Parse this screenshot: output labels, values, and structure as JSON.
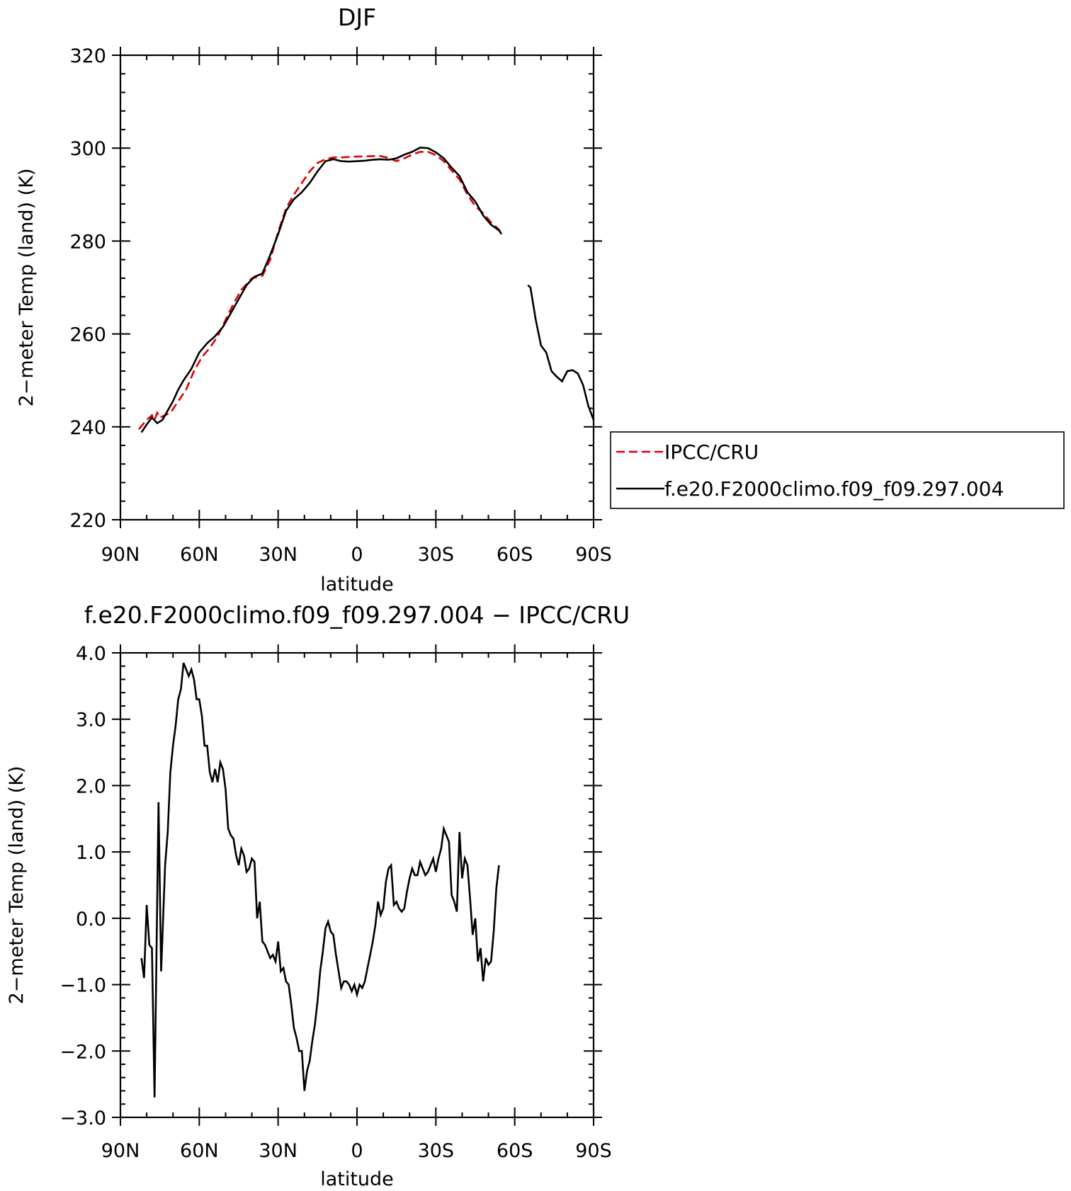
{
  "chart_data": [
    {
      "type": "line",
      "title": "DJF",
      "xlabel": "latitude",
      "ylabel": "2−meter Temp (land) (K)",
      "xlim": [
        90,
        -90
      ],
      "ylim": [
        220,
        320
      ],
      "x_ticks": [
        90,
        60,
        30,
        0,
        -30,
        -60,
        -90
      ],
      "x_tick_labels": [
        "90N",
        "60N",
        "30N",
        "0",
        "30S",
        "60S",
        "90S"
      ],
      "y_ticks": [
        220,
        240,
        260,
        280,
        300,
        320
      ],
      "y_tick_labels": [
        "220",
        "240",
        "260",
        "280",
        "300",
        "320"
      ],
      "legend_position": "right-outside",
      "series": [
        {
          "name": "IPCC/CRU",
          "color": "#e00000",
          "style": "dashed",
          "points": [
            [
              83,
              239.5
            ],
            [
              80,
              241.5
            ],
            [
              78,
              242.5
            ],
            [
              77,
              241.5
            ],
            [
              76,
              243
            ],
            [
              75,
              242
            ],
            [
              73,
              242.5
            ],
            [
              71,
              243
            ],
            [
              68,
              245.5
            ],
            [
              65,
              248
            ],
            [
              62,
              252
            ],
            [
              59,
              255
            ],
            [
              56,
              257
            ],
            [
              53,
              259.5
            ],
            [
              50,
              263
            ],
            [
              47,
              266.5
            ],
            [
              44,
              269.5
            ],
            [
              40,
              272
            ],
            [
              36,
              272.5
            ],
            [
              33,
              276
            ],
            [
              30,
              282
            ],
            [
              27,
              287
            ],
            [
              24,
              290
            ],
            [
              21,
              292.5
            ],
            [
              18,
              295
            ],
            [
              15,
              296.8
            ],
            [
              12,
              297.6
            ],
            [
              9,
              298
            ],
            [
              6,
              298
            ],
            [
              3,
              298.1
            ],
            [
              0,
              298.2
            ],
            [
              -3,
              298.2
            ],
            [
              -6,
              298.3
            ],
            [
              -9,
              298.3
            ],
            [
              -12,
              297.9
            ],
            [
              -15,
              297.2
            ],
            [
              -18,
              297.8
            ],
            [
              -21,
              298.6
            ],
            [
              -24,
              299.2
            ],
            [
              -27,
              299.2
            ],
            [
              -30,
              298.5
            ],
            [
              -33,
              297.2
            ],
            [
              -36,
              295.2
            ],
            [
              -39,
              293.3
            ],
            [
              -42,
              290
            ],
            [
              -45,
              287.5
            ],
            [
              -48,
              286
            ],
            [
              -51,
              284
            ],
            [
              -54,
              282.5
            ],
            [
              -55,
              281.3
            ]
          ]
        },
        {
          "name": "f.e20.F2000climo.f09_f09.297.004",
          "color": "#000000",
          "style": "solid",
          "segments": [
            [
              [
                82,
                238.8
              ],
              [
                80,
                240.5
              ],
              [
                78,
                242
              ],
              [
                76,
                240.8
              ],
              [
                74,
                241.5
              ],
              [
                72,
                243.5
              ],
              [
                70,
                245.5
              ],
              [
                68,
                248
              ],
              [
                66,
                250
              ],
              [
                63,
                252.5
              ],
              [
                60,
                256
              ],
              [
                57,
                258
              ],
              [
                54,
                259.5
              ],
              [
                51,
                261.5
              ],
              [
                48,
                264.5
              ],
              [
                45,
                267.5
              ],
              [
                42,
                270.5
              ],
              [
                39,
                272.3
              ],
              [
                36,
                273
              ],
              [
                33,
                277
              ],
              [
                30,
                281.5
              ],
              [
                27,
                286.5
              ],
              [
                24,
                289
              ],
              [
                21,
                290.5
              ],
              [
                18,
                292.5
              ],
              [
                15,
                295
              ],
              [
                12,
                297.2
              ],
              [
                9,
                297.6
              ],
              [
                6,
                297.2
              ],
              [
                3,
                297.1
              ],
              [
                0,
                297.2
              ],
              [
                -3,
                297.3
              ],
              [
                -6,
                297.5
              ],
              [
                -9,
                297.6
              ],
              [
                -12,
                297.5
              ],
              [
                -15,
                297.8
              ],
              [
                -18,
                298.6
              ],
              [
                -21,
                299.2
              ],
              [
                -24,
                300.1
              ],
              [
                -27,
                300
              ],
              [
                -30,
                299.1
              ],
              [
                -33,
                297.8
              ],
              [
                -36,
                295.8
              ],
              [
                -39,
                294
              ],
              [
                -42,
                290.5
              ],
              [
                -45,
                288.5
              ],
              [
                -48,
                285.5
              ],
              [
                -51,
                283.5
              ],
              [
                -54,
                282.3
              ],
              [
                -55,
                281.5
              ]
            ],
            [
              [
                -65,
                270.5
              ],
              [
                -66,
                270
              ],
              [
                -68,
                263
              ],
              [
                -70,
                257.5
              ],
              [
                -72,
                256
              ],
              [
                -74,
                252
              ],
              [
                -76,
                250.8
              ],
              [
                -78,
                249.8
              ],
              [
                -80,
                252
              ],
              [
                -82,
                252.2
              ],
              [
                -84,
                251.5
              ],
              [
                -86,
                249
              ],
              [
                -88,
                244.5
              ],
              [
                -90,
                241.5
              ]
            ]
          ]
        }
      ]
    },
    {
      "type": "line",
      "title": "f.e20.F2000climo.f09_f09.297.004 − IPCC/CRU",
      "xlabel": "latitude",
      "ylabel": "2−meter Temp (land) (K)",
      "xlim": [
        90,
        -90
      ],
      "ylim": [
        -3,
        4
      ],
      "x_ticks": [
        90,
        60,
        30,
        0,
        -30,
        -60,
        -90
      ],
      "x_tick_labels": [
        "90N",
        "60N",
        "30N",
        "0",
        "30S",
        "60S",
        "90S"
      ],
      "y_ticks": [
        -3,
        -2,
        -1,
        0,
        1,
        2,
        3,
        4
      ],
      "y_tick_labels": [
        "−3.0",
        "−2.0",
        "−1.0",
        "0.0",
        "1.0",
        "2.0",
        "3.0",
        "4.0"
      ],
      "series": [
        {
          "name": "",
          "color": "#000000",
          "style": "solid",
          "points": [
            [
              82,
              -0.6
            ],
            [
              81,
              -0.9
            ],
            [
              80,
              0.2
            ],
            [
              79,
              -0.4
            ],
            [
              78,
              -0.45
            ],
            [
              77,
              -2.7
            ],
            [
              75.5,
              1.75
            ],
            [
              74.5,
              -0.8
            ],
            [
              73,
              0.8
            ],
            [
              72,
              1.3
            ],
            [
              71,
              2.2
            ],
            [
              70,
              2.6
            ],
            [
              69,
              2.9
            ],
            [
              68,
              3.3
            ],
            [
              67,
              3.45
            ],
            [
              66,
              3.85
            ],
            [
              65,
              3.75
            ],
            [
              64,
              3.65
            ],
            [
              63,
              3.75
            ],
            [
              62,
              3.6
            ],
            [
              61,
              3.3
            ],
            [
              60,
              3.3
            ],
            [
              59,
              3.05
            ],
            [
              58,
              2.6
            ],
            [
              57,
              2.6
            ],
            [
              56,
              2.2
            ],
            [
              55,
              2.05
            ],
            [
              54,
              2.25
            ],
            [
              53,
              2.05
            ],
            [
              52,
              2.35
            ],
            [
              51,
              2.25
            ],
            [
              50,
              1.95
            ],
            [
              49,
              1.35
            ],
            [
              48,
              1.25
            ],
            [
              47,
              1.2
            ],
            [
              46,
              0.95
            ],
            [
              45,
              0.8
            ],
            [
              44,
              1.05
            ],
            [
              43,
              0.95
            ],
            [
              42,
              0.7
            ],
            [
              41,
              0.75
            ],
            [
              40,
              0.9
            ],
            [
              39,
              0.85
            ],
            [
              38,
              0.0
            ],
            [
              37,
              0.25
            ],
            [
              36,
              -0.35
            ],
            [
              35,
              -0.4
            ],
            [
              34,
              -0.5
            ],
            [
              33,
              -0.6
            ],
            [
              32,
              -0.55
            ],
            [
              31,
              -0.65
            ],
            [
              30,
              -0.35
            ],
            [
              29,
              -0.8
            ],
            [
              28,
              -0.75
            ],
            [
              27,
              -0.95
            ],
            [
              26,
              -1.0
            ],
            [
              25,
              -1.3
            ],
            [
              24,
              -1.65
            ],
            [
              23,
              -1.8
            ],
            [
              22,
              -2.0
            ],
            [
              21,
              -2.0
            ],
            [
              20,
              -2.6
            ],
            [
              19,
              -2.3
            ],
            [
              18,
              -2.15
            ],
            [
              17,
              -1.85
            ],
            [
              16,
              -1.6
            ],
            [
              15,
              -1.25
            ],
            [
              14,
              -0.8
            ],
            [
              13,
              -0.5
            ],
            [
              12,
              -0.15
            ],
            [
              11,
              -0.05
            ],
            [
              10,
              -0.2
            ],
            [
              9,
              -0.25
            ],
            [
              8,
              -0.55
            ],
            [
              7,
              -0.8
            ],
            [
              6,
              -1.05
            ],
            [
              5,
              -0.95
            ],
            [
              4,
              -0.95
            ],
            [
              3,
              -1.0
            ],
            [
              2,
              -1.1
            ],
            [
              1,
              -1.0
            ],
            [
              0,
              -1.15
            ],
            [
              -1,
              -1.0
            ],
            [
              -2,
              -1.05
            ],
            [
              -3,
              -0.95
            ],
            [
              -4,
              -0.75
            ],
            [
              -5,
              -0.55
            ],
            [
              -6,
              -0.35
            ],
            [
              -7,
              -0.1
            ],
            [
              -8,
              0.25
            ],
            [
              -9,
              0.05
            ],
            [
              -10,
              0.15
            ],
            [
              -11,
              0.55
            ],
            [
              -12,
              0.75
            ],
            [
              -13,
              0.8
            ],
            [
              -14,
              0.2
            ],
            [
              -15,
              0.25
            ],
            [
              -16,
              0.15
            ],
            [
              -17,
              0.1
            ],
            [
              -18,
              0.15
            ],
            [
              -19,
              0.4
            ],
            [
              -20,
              0.6
            ],
            [
              -21,
              0.75
            ],
            [
              -22,
              0.65
            ],
            [
              -23,
              0.65
            ],
            [
              -24,
              0.85
            ],
            [
              -25,
              0.75
            ],
            [
              -26,
              0.65
            ],
            [
              -27,
              0.7
            ],
            [
              -28,
              0.8
            ],
            [
              -29,
              0.9
            ],
            [
              -30,
              0.7
            ],
            [
              -31,
              0.9
            ],
            [
              -32,
              1.05
            ],
            [
              -33,
              1.35
            ],
            [
              -34,
              1.25
            ],
            [
              -35,
              1.15
            ],
            [
              -36,
              0.35
            ],
            [
              -37,
              0.25
            ],
            [
              -38,
              0.1
            ],
            [
              -39,
              1.3
            ],
            [
              -40,
              0.6
            ],
            [
              -41,
              0.9
            ],
            [
              -42,
              0.8
            ],
            [
              -43,
              0.3
            ],
            [
              -44,
              -0.25
            ],
            [
              -45,
              0.0
            ],
            [
              -46,
              -0.65
            ],
            [
              -47,
              -0.45
            ],
            [
              -48,
              -0.95
            ],
            [
              -49,
              -0.6
            ],
            [
              -50,
              -0.7
            ],
            [
              -51,
              -0.65
            ],
            [
              -52,
              -0.2
            ],
            [
              -53,
              0.45
            ],
            [
              -54,
              0.8
            ]
          ]
        }
      ]
    }
  ]
}
